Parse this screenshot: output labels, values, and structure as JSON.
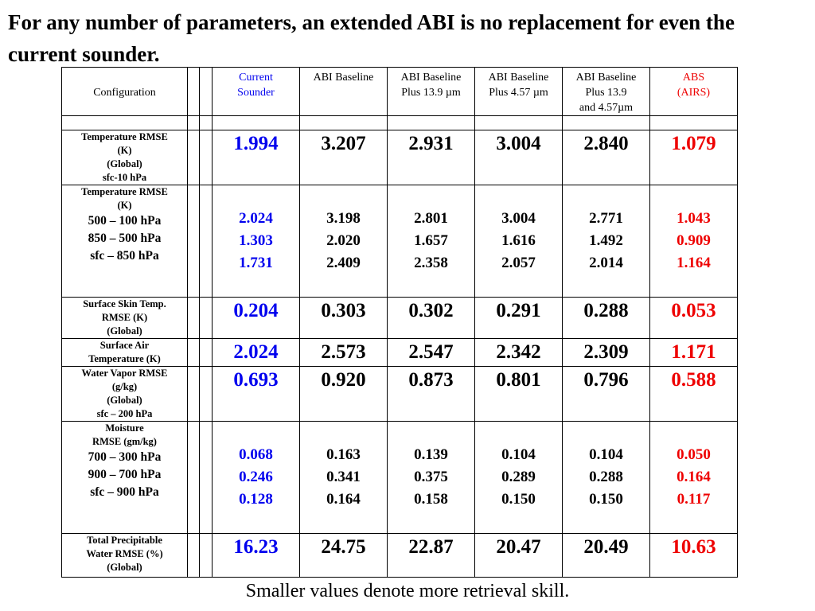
{
  "title": "For any number of parameters, an extended ABI is no replacement for even the current sounder.",
  "footnote": "Smaller values denote more retrieval skill.",
  "colors": {
    "current": "#0000ee",
    "abs": "#ee0000",
    "other": "#000000"
  },
  "headers": {
    "config": "Configuration",
    "current": [
      "Current",
      "Sounder"
    ],
    "abi": [
      "ABI Baseline"
    ],
    "abi139": [
      "ABI Baseline",
      "Plus 13.9 µm"
    ],
    "abi457": [
      "ABI Baseline",
      "Plus 4.57 µm"
    ],
    "abi_both": [
      "ABI Baseline",
      "Plus 13.9",
      "and 4.57µm"
    ],
    "abs": [
      "ABS",
      "(AIRS)"
    ]
  },
  "rows": [
    {
      "label": [
        "Temperature RMSE",
        "(K)",
        "(Global)",
        "sfc-10 hPa"
      ],
      "sublabel": [],
      "current": [
        "1.994"
      ],
      "abi": [
        "3.207"
      ],
      "abi139": [
        "2.931"
      ],
      "abi457": [
        "3.004"
      ],
      "abi_both": [
        "2.840"
      ],
      "abs": [
        "1.079"
      ]
    },
    {
      "label": [
        "Temperature RMSE",
        "(K)"
      ],
      "sublabel": [
        "500 – 100 hPa",
        "850 – 500 hPa",
        "sfc – 850 hPa"
      ],
      "current": [
        "2.024",
        "1.303",
        "1.731"
      ],
      "abi": [
        "3.198",
        "2.020",
        "2.409"
      ],
      "abi139": [
        "2.801",
        "1.657",
        "2.358"
      ],
      "abi457": [
        "3.004",
        "1.616",
        "2.057"
      ],
      "abi_both": [
        "2.771",
        "1.492",
        "2.014"
      ],
      "abs": [
        "1.043",
        "0.909",
        "1.164"
      ]
    },
    {
      "label": [
        "Surface Skin Temp.",
        "RMSE (K)",
        "(Global)"
      ],
      "sublabel": [],
      "current": [
        "0.204"
      ],
      "abi": [
        "0.303"
      ],
      "abi139": [
        "0.302"
      ],
      "abi457": [
        "0.291"
      ],
      "abi_both": [
        "0.288"
      ],
      "abs": [
        "0.053"
      ]
    },
    {
      "label": [
        "Surface Air",
        "Temperature (K)"
      ],
      "sublabel": [],
      "current": [
        "2.024"
      ],
      "abi": [
        "2.573"
      ],
      "abi139": [
        "2.547"
      ],
      "abi457": [
        "2.342"
      ],
      "abi_both": [
        "2.309"
      ],
      "abs": [
        "1.171"
      ]
    },
    {
      "label": [
        "Water Vapor RMSE",
        "(g/kg)",
        "(Global)",
        "sfc – 200 hPa"
      ],
      "sublabel": [],
      "current": [
        "0.693"
      ],
      "abi": [
        "0.920"
      ],
      "abi139": [
        "0.873"
      ],
      "abi457": [
        "0.801"
      ],
      "abi_both": [
        "0.796"
      ],
      "abs": [
        "0.588"
      ]
    },
    {
      "label": [
        "Moisture",
        "RMSE (gm/kg)"
      ],
      "sublabel": [
        "700 – 300 hPa",
        "900 – 700 hPa",
        "sfc – 900 hPa"
      ],
      "current": [
        "0.068",
        "0.246",
        "0.128"
      ],
      "abi": [
        "0.163",
        "0.341",
        "0.164"
      ],
      "abi139": [
        "0.139",
        "0.375",
        "0.158"
      ],
      "abi457": [
        "0.104",
        "0.289",
        "0.150"
      ],
      "abi_both": [
        "0.104",
        "0.288",
        "0.150"
      ],
      "abs": [
        "0.050",
        "0.164",
        "0.117"
      ]
    },
    {
      "label": [
        "Total Precipitable",
        "Water RMSE (%)",
        "(Global)"
      ],
      "sublabel": [],
      "current": [
        "16.23"
      ],
      "abi": [
        "24.75"
      ],
      "abi139": [
        "22.87"
      ],
      "abi457": [
        "20.47"
      ],
      "abi_both": [
        "20.49"
      ],
      "abs": [
        "10.63"
      ]
    }
  ]
}
